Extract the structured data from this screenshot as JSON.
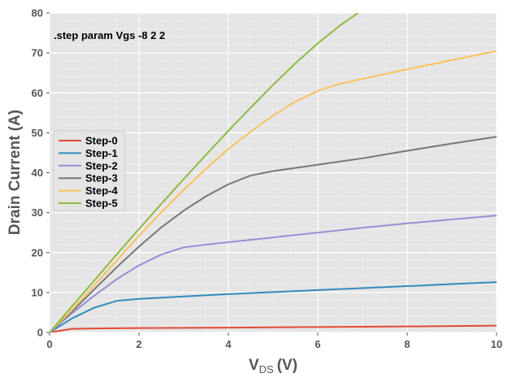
{
  "chart_data": {
    "type": "line",
    "title": "",
    "xlabel": "V",
    "xlabel_sub": "DS",
    "xlabel_unit": "(V)",
    "ylabel": "Drain Current (A)",
    "xlim": [
      0,
      10
    ],
    "ylim": [
      0,
      80
    ],
    "xticks": [
      0,
      2,
      4,
      6,
      8,
      10
    ],
    "yticks": [
      0,
      10,
      20,
      30,
      40,
      50,
      60,
      70,
      80
    ],
    "grid": true,
    "legend_position": "middle-left",
    "annotation": ".step param Vgs -8 2 2",
    "colors": {
      "background": "#e5e5e5",
      "grid_major": "#ffffff",
      "tick_text": "#555555"
    },
    "series": [
      {
        "name": "Step-0",
        "color": "#e24a33",
        "x": [
          0,
          0.5,
          1,
          2,
          4,
          6,
          8,
          10
        ],
        "y": [
          0,
          0.9,
          1.0,
          1.1,
          1.2,
          1.35,
          1.5,
          1.7
        ]
      },
      {
        "name": "Step-1",
        "color": "#348abd",
        "x": [
          0,
          0.5,
          1,
          1.5,
          2,
          3,
          4,
          5,
          6,
          7,
          8,
          9,
          10
        ],
        "y": [
          0,
          3.5,
          6.2,
          7.9,
          8.4,
          9.0,
          9.6,
          10.1,
          10.6,
          11.1,
          11.6,
          12.1,
          12.6
        ]
      },
      {
        "name": "Step-2",
        "color": "#988ed5",
        "x": [
          0,
          0.5,
          1,
          1.5,
          2,
          2.5,
          3,
          3.5,
          4,
          5,
          6,
          7,
          8,
          9,
          10
        ],
        "y": [
          0,
          4.8,
          9.2,
          13.3,
          16.8,
          19.5,
          21.3,
          22.0,
          22.6,
          23.8,
          25.0,
          26.2,
          27.3,
          28.3,
          29.3
        ]
      },
      {
        "name": "Step-3",
        "color": "#777777",
        "x": [
          0,
          0.5,
          1,
          1.5,
          2,
          2.5,
          3,
          3.5,
          4,
          4.5,
          5,
          6,
          7,
          8,
          9,
          10
        ],
        "y": [
          0,
          5.2,
          10.8,
          16.3,
          21.5,
          26.3,
          30.5,
          34.1,
          37.1,
          39.3,
          40.4,
          42.0,
          43.6,
          45.5,
          47.3,
          49.0
        ]
      },
      {
        "name": "Step-4",
        "color": "#fbc15e",
        "x": [
          0,
          0.5,
          1,
          1.5,
          2,
          2.5,
          3,
          3.5,
          4,
          4.5,
          5,
          5.5,
          6,
          6.5,
          7,
          8,
          9,
          10
        ],
        "y": [
          0,
          5.6,
          11.8,
          18.0,
          24.2,
          30.1,
          35.7,
          41.0,
          45.9,
          50.3,
          54.3,
          57.8,
          60.5,
          62.3,
          63.5,
          65.9,
          68.2,
          70.5
        ]
      },
      {
        "name": "Step-5",
        "color": "#8eba42",
        "x": [
          0,
          0.5,
          1,
          1.5,
          2,
          2.5,
          3,
          3.5,
          4,
          4.5,
          5,
          5.5,
          6,
          6.5,
          6.9
        ],
        "y": [
          0,
          6.5,
          13.0,
          19.5,
          25.9,
          32.2,
          38.4,
          44.5,
          50.5,
          56.3,
          62.0,
          67.4,
          72.4,
          76.9,
          80.0
        ]
      }
    ]
  }
}
